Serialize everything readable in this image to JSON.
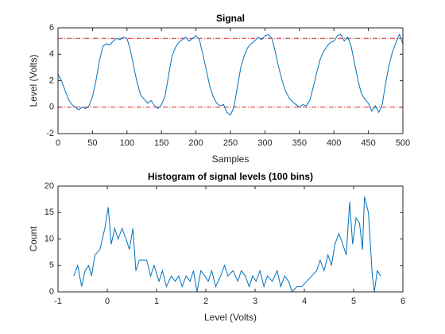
{
  "chart_data": [
    {
      "type": "line",
      "title": "Signal",
      "x_label": "Samples",
      "y_label": "Level (Volts)",
      "x": [
        0,
        5,
        10,
        15,
        20,
        25,
        30,
        35,
        40,
        45,
        50,
        55,
        60,
        65,
        70,
        75,
        80,
        85,
        90,
        95,
        100,
        105,
        110,
        115,
        120,
        125,
        130,
        135,
        140,
        145,
        150,
        155,
        160,
        165,
        170,
        175,
        180,
        185,
        190,
        195,
        200,
        205,
        210,
        215,
        220,
        225,
        230,
        235,
        240,
        245,
        250,
        255,
        260,
        265,
        270,
        275,
        280,
        285,
        290,
        295,
        300,
        305,
        310,
        315,
        320,
        325,
        330,
        335,
        340,
        345,
        350,
        355,
        360,
        365,
        370,
        375,
        380,
        385,
        390,
        395,
        400,
        405,
        410,
        415,
        420,
        425,
        430,
        435,
        440,
        445,
        450,
        455,
        460,
        465,
        470,
        475,
        480,
        485,
        490,
        495,
        500
      ],
      "series": [
        {
          "color": "#0072bd",
          "values": [
            2.5,
            2.0,
            1.3,
            0.6,
            0.2,
            0,
            -0.2,
            0,
            -0.1,
            0.1,
            0.8,
            2.0,
            3.5,
            4.6,
            4.8,
            4.7,
            5.0,
            5.2,
            5.1,
            5.3,
            5.2,
            4.3,
            3.0,
            1.8,
            0.9,
            0.6,
            0.3,
            0.5,
            0.1,
            -0.1,
            0.2,
            0.8,
            2.3,
            3.8,
            4.5,
            4.9,
            5.1,
            5.3,
            5.0,
            5.2,
            5.4,
            5.1,
            4.0,
            2.8,
            1.6,
            0.8,
            0.3,
            0.1,
            0.2,
            -0.4,
            -0.6,
            0.0,
            1.5,
            3.0,
            3.9,
            4.5,
            4.8,
            5.0,
            5.3,
            5.1,
            5.4,
            5.5,
            5.2,
            4.2,
            3.0,
            2.0,
            1.2,
            0.7,
            0.4,
            0.2,
            0.0,
            0.2,
            0.1,
            0.5,
            1.5,
            2.6,
            3.6,
            4.2,
            4.6,
            4.9,
            5.0,
            5.4,
            5.5,
            5.0,
            5.3,
            4.6,
            3.3,
            2.0,
            1.0,
            0.6,
            0.3,
            -0.3,
            0.1,
            -0.4,
            0.2,
            1.8,
            3.2,
            4.2,
            4.9,
            5.5,
            4.8
          ]
        }
      ],
      "reference_lines": [
        {
          "value": 0,
          "color": "#d62728"
        },
        {
          "value": 5.2,
          "color": "#d62728"
        }
      ],
      "xlim": [
        0,
        500
      ],
      "xticks": [
        0,
        50,
        100,
        150,
        200,
        250,
        300,
        350,
        400,
        450,
        500
      ],
      "ylim": [
        -2,
        6
      ],
      "yticks": [
        -2,
        0,
        2,
        4,
        6
      ]
    },
    {
      "type": "line",
      "title": "Histogram of signal levels (100 bins)",
      "x_label": "Level (Volts)",
      "y_label": "Count",
      "x": [
        -0.68,
        -0.6,
        -0.52,
        -0.45,
        -0.38,
        -0.32,
        -0.25,
        -0.15,
        -0.05,
        0.02,
        0.08,
        0.15,
        0.22,
        0.3,
        0.38,
        0.45,
        0.52,
        0.58,
        0.65,
        0.8,
        0.88,
        0.95,
        1.05,
        1.12,
        1.2,
        1.3,
        1.38,
        1.45,
        1.52,
        1.6,
        1.68,
        1.75,
        1.82,
        1.9,
        1.98,
        2.05,
        2.12,
        2.2,
        2.3,
        2.38,
        2.45,
        2.55,
        2.65,
        2.72,
        2.8,
        2.88,
        2.95,
        3.02,
        3.1,
        3.18,
        3.25,
        3.35,
        3.45,
        3.52,
        3.6,
        3.68,
        3.75,
        3.85,
        3.95,
        4.05,
        4.15,
        4.25,
        4.32,
        4.4,
        4.48,
        4.55,
        4.62,
        4.7,
        4.78,
        4.85,
        4.92,
        4.98,
        5.05,
        5.12,
        5.18,
        5.22,
        5.3,
        5.38,
        5.42,
        5.48,
        5.55
      ],
      "series": [
        {
          "color": "#0072bd",
          "values": [
            3,
            5,
            1,
            4,
            5,
            3,
            7,
            8,
            12,
            16,
            9,
            12,
            10,
            12,
            10,
            8,
            12,
            4,
            6,
            6,
            3,
            5,
            2,
            4,
            1,
            3,
            2,
            3,
            1,
            3,
            2,
            4,
            0,
            4,
            3,
            2,
            4,
            1,
            3,
            5,
            3,
            4,
            2,
            4,
            3,
            1,
            3,
            2,
            4,
            1,
            3,
            2,
            4,
            1,
            3,
            2,
            0,
            1,
            1,
            2,
            3,
            4,
            6,
            4,
            7,
            5,
            9,
            11,
            9,
            7,
            17,
            9,
            14,
            13,
            8,
            18,
            15,
            3,
            0,
            4,
            3
          ]
        }
      ],
      "xlim": [
        -1,
        6
      ],
      "xticks": [
        -1,
        0,
        1,
        2,
        3,
        4,
        5,
        6
      ],
      "ylim": [
        0,
        20
      ],
      "yticks": [
        0,
        5,
        10,
        15,
        20
      ]
    }
  ]
}
